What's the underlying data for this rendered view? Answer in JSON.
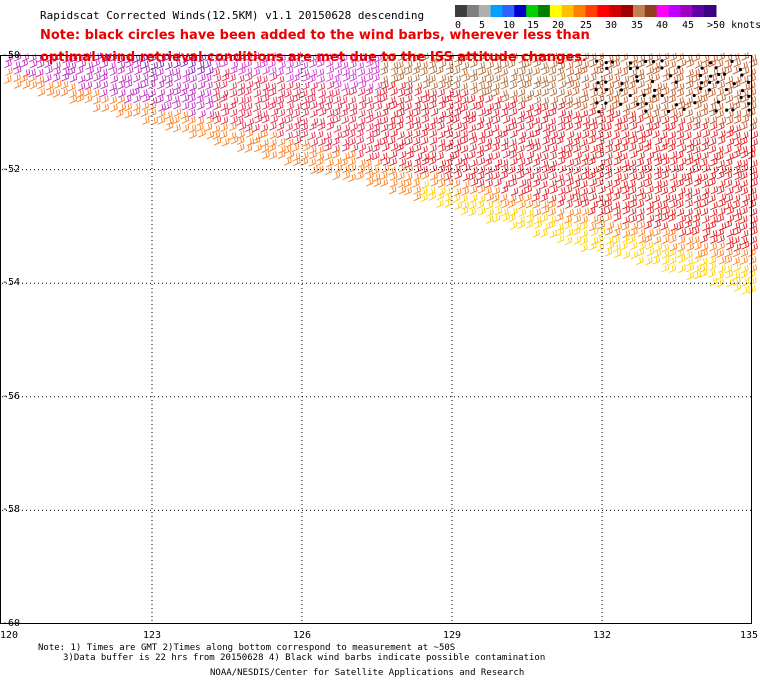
{
  "header": {
    "title": "Rapidscat Corrected Winds(12.5KM) v1.1 20150628 descending",
    "note_line1": "Note: black circles have been added to the wind barbs, wherever less than",
    "note_line2": "optimal wind retrieval conditions are met due to the ISS attitude changes."
  },
  "color_scale": {
    "labels": [
      "0",
      "5",
      "10",
      "15",
      "20",
      "25",
      "30",
      "35",
      "40",
      "45",
      ">50 knots"
    ],
    "colors": [
      "#3c3c3c",
      "#7f7f7f",
      "#b0b0b0",
      "#00a0ff",
      "#3060ff",
      "#0000c8",
      "#00d000",
      "#008000",
      "#ffff00",
      "#ffc000",
      "#ff8000",
      "#ff4000",
      "#ff0000",
      "#d00000",
      "#a00000",
      "#c08050",
      "#904020",
      "#ff00ff",
      "#c000ff",
      "#a000c0",
      "#6000a0",
      "#3c0080"
    ]
  },
  "map": {
    "lat_labels": [
      "-50",
      "-52",
      "-54",
      "-56",
      "-58",
      "-60"
    ],
    "lon_labels": [
      "120",
      "123",
      "126",
      "129",
      "132",
      "135"
    ],
    "lat_range": [
      -60,
      -50
    ],
    "lon_range": [
      120,
      135
    ]
  },
  "footer": {
    "note_a": "Note: 1) Times are GMT 2)Times along bottom correspond to measurement at ~50S",
    "note_b": "3)Data buffer is 22 hrs from 20150628 4) Black wind barbs indicate possible contamination",
    "credit": "NOAA/NESDIS/Center for Satellite Applications and Research"
  }
}
